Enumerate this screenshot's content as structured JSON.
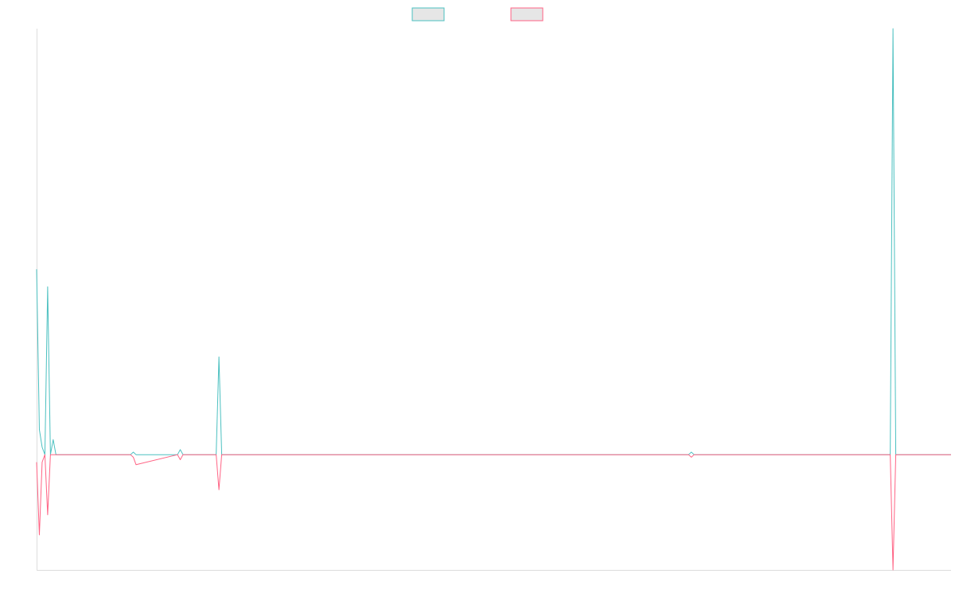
{
  "chart_data": {
    "type": "line",
    "title": "",
    "xlabel": "",
    "ylabel": "",
    "grid": false,
    "legend": {
      "position": "top-center",
      "entries": [
        {
          "name": "",
          "color": "#4bc0c0",
          "fill": "#e6e6e6"
        },
        {
          "name": "",
          "color": "#ff6384",
          "fill": "#e6e6e6"
        }
      ]
    },
    "xlim": [
      0,
      331
    ],
    "ylim": [
      -23,
      85
    ],
    "x": [
      0,
      1,
      2,
      3,
      4,
      5,
      6,
      7,
      8,
      34,
      35,
      36,
      51,
      52,
      53,
      65,
      66,
      67,
      236,
      237,
      238,
      309,
      310,
      311,
      331
    ],
    "series": [
      {
        "name": "",
        "color": "#4bc0c0",
        "values": [
          37,
          5,
          1.5,
          0,
          33.5,
          0,
          3,
          0,
          0,
          0,
          0.5,
          0,
          0,
          1,
          0,
          0,
          19.5,
          0,
          0,
          0.5,
          0,
          0,
          85,
          0,
          0
        ]
      },
      {
        "name": "",
        "color": "#ff6384",
        "values": [
          -1.5,
          -16,
          -1.5,
          0,
          -12,
          0,
          0,
          0,
          0,
          0,
          -0.5,
          -2,
          0,
          -1,
          0,
          0,
          -7,
          0,
          0,
          -0.5,
          0,
          0,
          -23,
          0,
          0
        ]
      }
    ]
  }
}
